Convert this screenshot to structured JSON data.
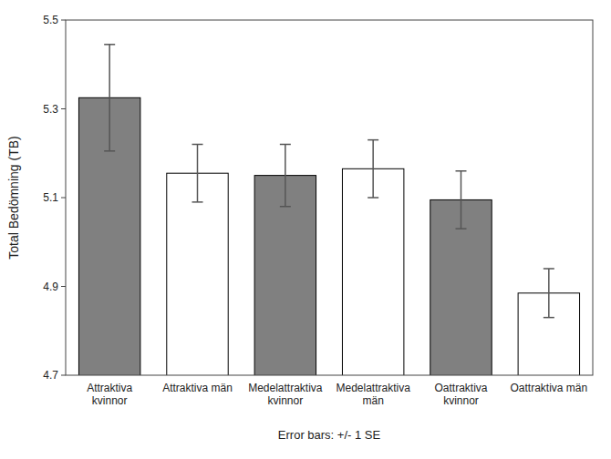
{
  "chart_data": {
    "type": "bar",
    "categories": [
      "Attraktiva\nkvinnor",
      "Attraktiva män",
      "Medelattraktiva\nkvinnor",
      "Medelattraktiva\nmän",
      "Oattraktiva\nkvinnor",
      "Oattraktiva män"
    ],
    "values": [
      5.325,
      5.155,
      5.15,
      5.165,
      5.095,
      4.885
    ],
    "errors": [
      0.12,
      0.065,
      0.07,
      0.065,
      0.065,
      0.055
    ],
    "colors": [
      "#808080",
      "#ffffff",
      "#808080",
      "#ffffff",
      "#808080",
      "#ffffff"
    ],
    "ylabel": "Total Bedömning (TB)",
    "xlabel": "Error bars: +/- 1 SE",
    "ylim": [
      4.7,
      5.5
    ],
    "yticks": [
      4.7,
      4.9,
      5.1,
      5.3,
      5.5
    ],
    "grid": false
  }
}
